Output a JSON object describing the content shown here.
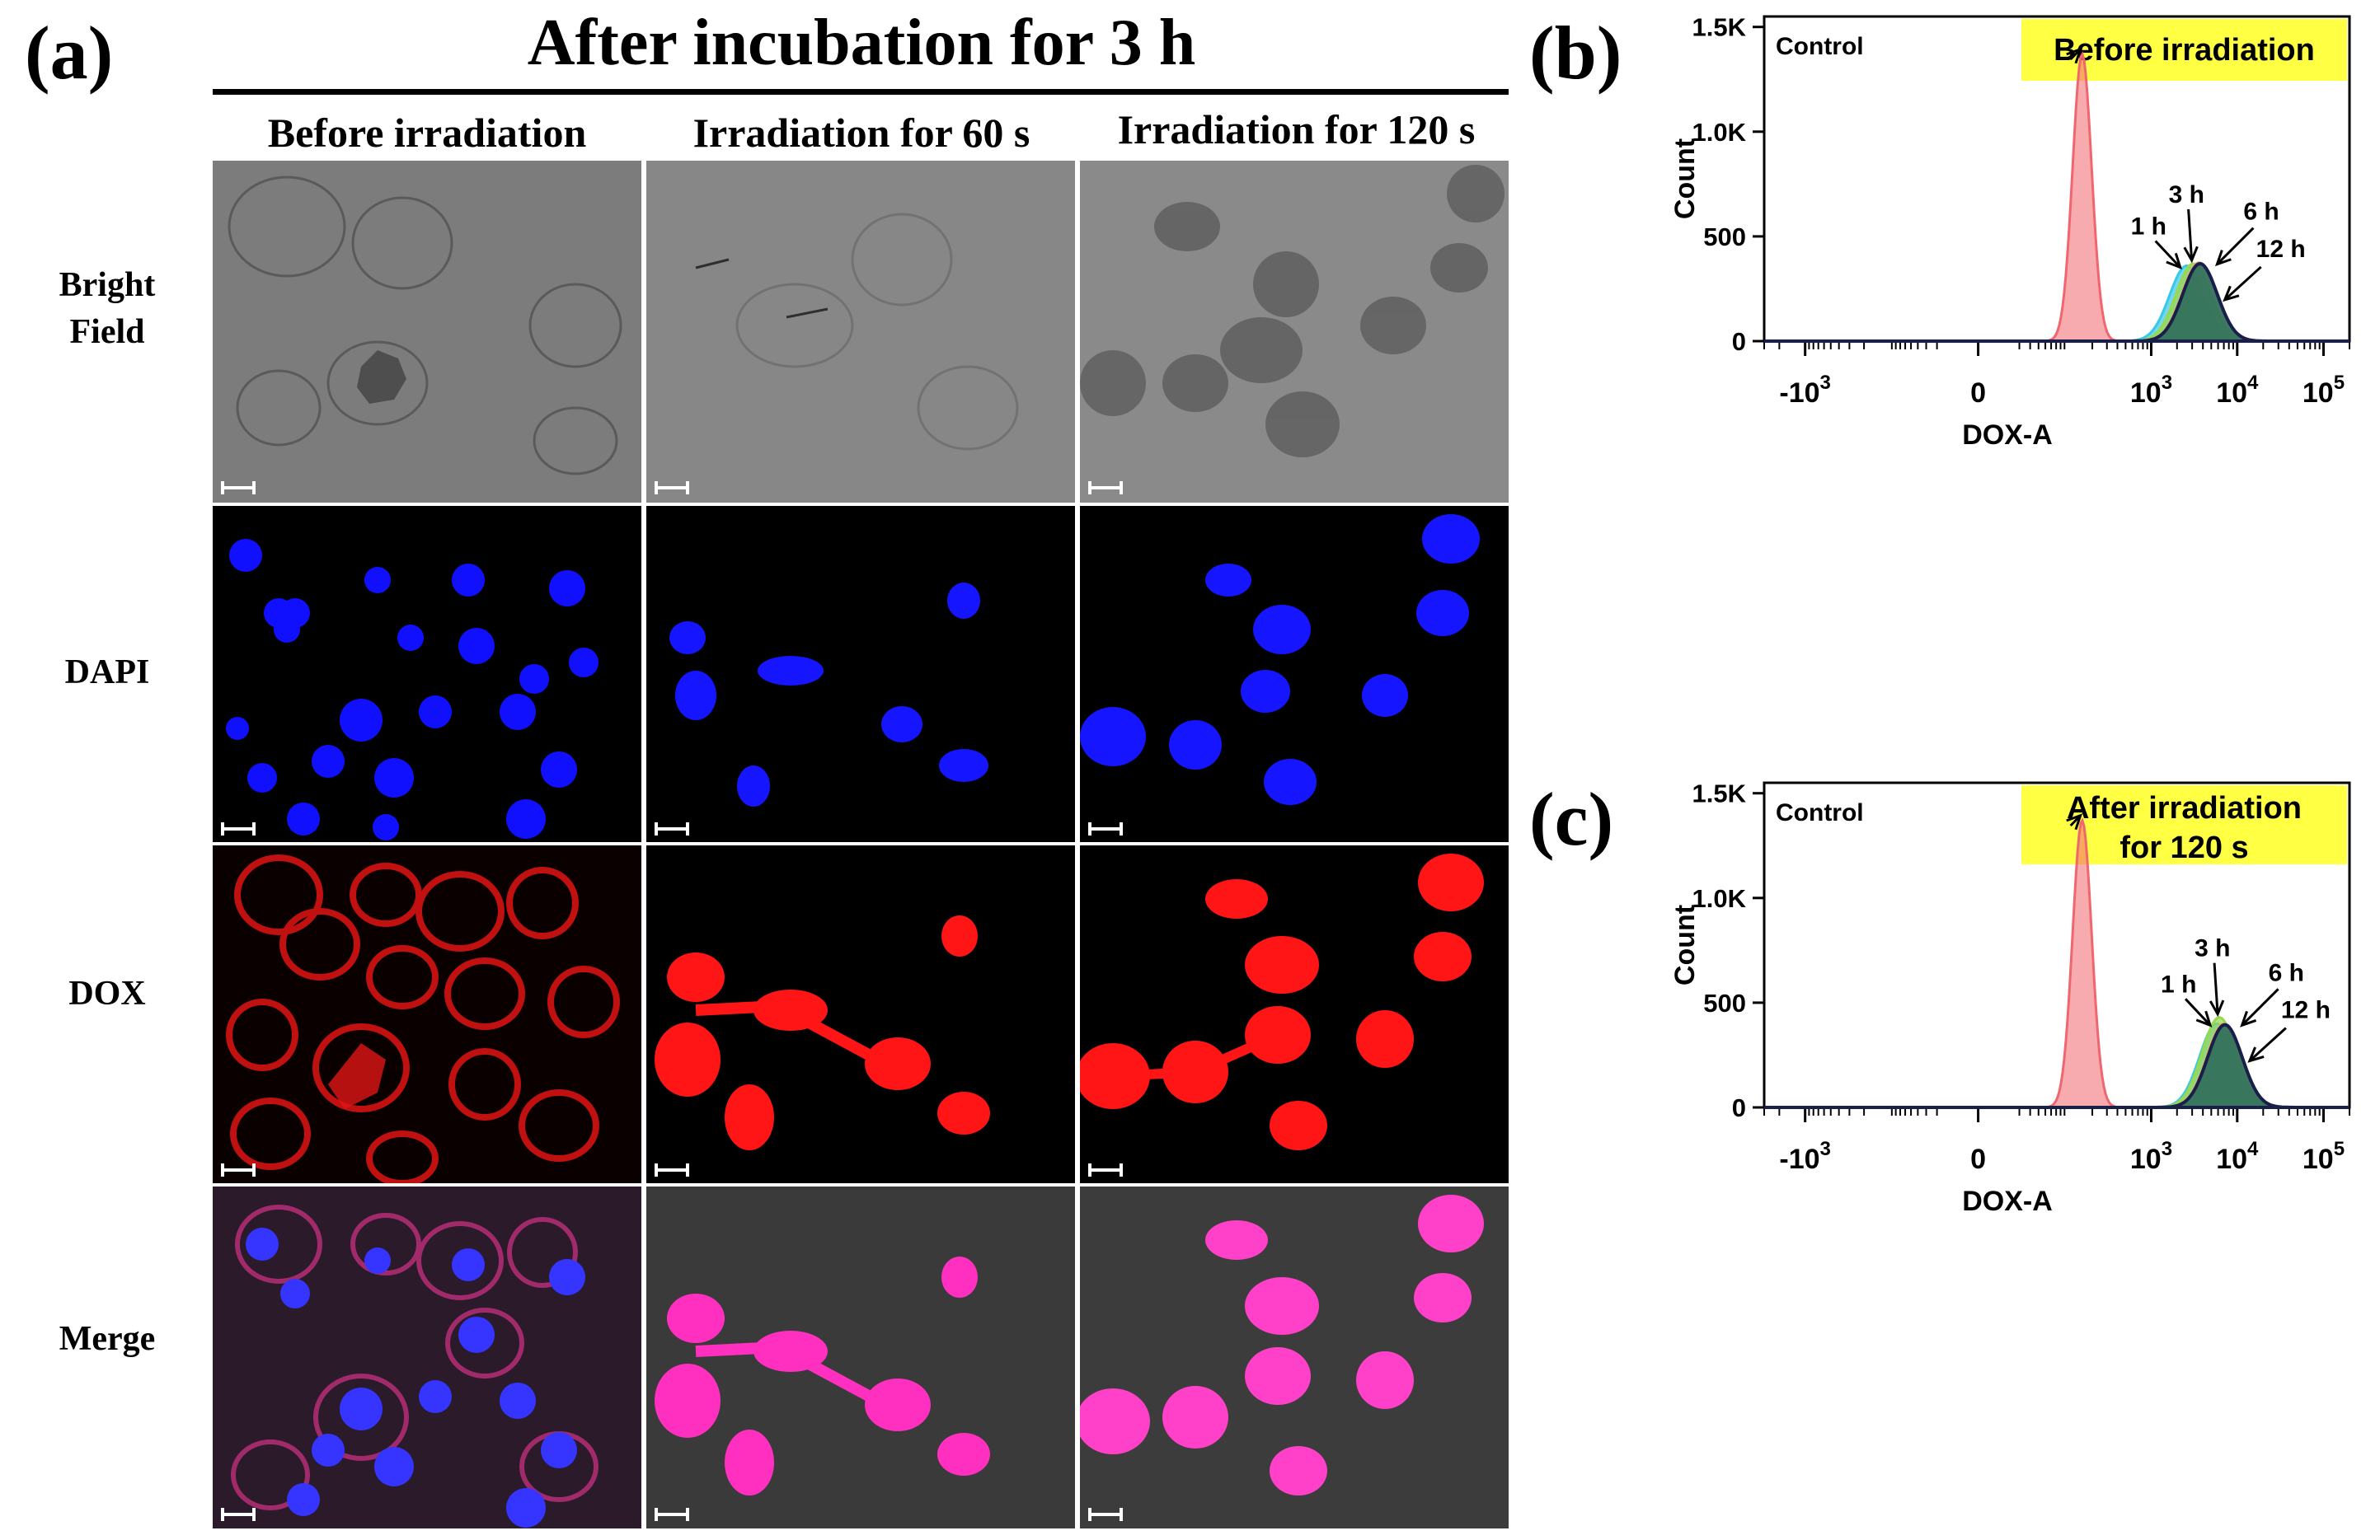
{
  "panel_a": {
    "letter": "(a)",
    "title": "After incubation for 3 h",
    "columns": [
      "Before irradiation",
      "Irradiation for 60 s",
      "Irradiation for 120 s"
    ],
    "rows": [
      {
        "line1": "Bright",
        "line2": "Field"
      },
      {
        "line1": "DAPI",
        "line2": ""
      },
      {
        "line1": "DOX",
        "line2": ""
      },
      {
        "line1": "Merge",
        "line2": ""
      }
    ]
  },
  "panel_b": {
    "letter": "(b)"
  },
  "panel_c": {
    "letter": "(c)"
  },
  "colors": {
    "control": "#f0666e",
    "h1": "#35c8e8",
    "h3": "#9ad84a",
    "h6": "#e8b070",
    "h12": "#1e6a5a",
    "highlight_box": "#ffff44",
    "dapi_blue": "#1010ff",
    "dox_red": "#ff1010"
  },
  "chart_data": [
    {
      "type": "area",
      "panel": "(b)",
      "title_box": [
        "Before irradiation"
      ],
      "xlabel": "DOX-A",
      "ylabel": "Count",
      "x_scale": "biexponential",
      "x_tick_labels": [
        {
          "base": "-10",
          "exp": "3"
        },
        {
          "base": "0",
          "exp": ""
        },
        {
          "base": "10",
          "exp": "3"
        },
        {
          "base": "10",
          "exp": "4"
        },
        {
          "base": "10",
          "exp": "5"
        }
      ],
      "y_ticks": [
        "0",
        "500",
        "1.0K",
        "1.5K"
      ],
      "ylim": [
        0,
        1550
      ],
      "series": [
        {
          "name": "Control",
          "peak_x": 150,
          "peak_y": 1370
        },
        {
          "name": "1 h",
          "peak_x": 2600,
          "peak_y": 360
        },
        {
          "name": "3 h",
          "peak_x": 3100,
          "peak_y": 370
        },
        {
          "name": "6 h",
          "peak_x": 3600,
          "peak_y": 375
        },
        {
          "name": "12 h",
          "peak_x": 3700,
          "peak_y": 370
        }
      ]
    },
    {
      "type": "area",
      "panel": "(c)",
      "title_box": [
        "After irradiation",
        "for 120 s"
      ],
      "xlabel": "DOX-A",
      "ylabel": "Count",
      "x_scale": "biexponential",
      "x_tick_labels": [
        {
          "base": "-10",
          "exp": "3"
        },
        {
          "base": "0",
          "exp": ""
        },
        {
          "base": "10",
          "exp": "3"
        },
        {
          "base": "10",
          "exp": "4"
        },
        {
          "base": "10",
          "exp": "5"
        }
      ],
      "y_ticks": [
        "0",
        "500",
        "1.0K",
        "1.5K"
      ],
      "ylim": [
        0,
        1550
      ],
      "series": [
        {
          "name": "Control",
          "peak_x": 150,
          "peak_y": 1370
        },
        {
          "name": "1 h",
          "peak_x": 5800,
          "peak_y": 400
        },
        {
          "name": "3 h",
          "peak_x": 6200,
          "peak_y": 430
        },
        {
          "name": "6 h",
          "peak_x": 7000,
          "peak_y": 400
        },
        {
          "name": "12 h",
          "peak_x": 7200,
          "peak_y": 395
        }
      ]
    }
  ]
}
